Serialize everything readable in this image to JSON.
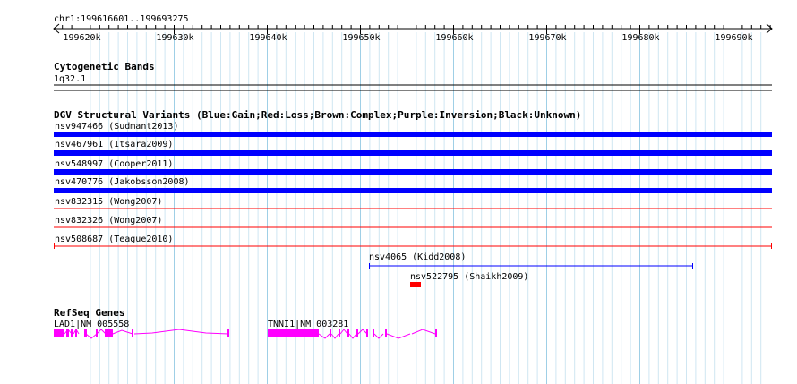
{
  "ruler": {
    "location": "chr1:199616601..199693275",
    "ticks": [
      "199620k",
      "199630k",
      "199640k",
      "199650k",
      "199660k",
      "199670k",
      "199680k",
      "199690k"
    ]
  },
  "cytobands": {
    "title": "Cytogenetic Bands",
    "band": "1q32.1"
  },
  "dgv": {
    "title": "DGV Structural Variants (Blue:Gain;Red:Loss;Brown:Complex;Purple:Inversion;Black:Unknown)",
    "variants": [
      {
        "label": "nsv947466 (Sudmant2013)",
        "type": "gain"
      },
      {
        "label": "nsv467961 (Itsara2009)",
        "type": "gain"
      },
      {
        "label": "nsv548997 (Cooper2011)",
        "type": "gain"
      },
      {
        "label": "nsv470776 (Jakobsson2008)",
        "type": "gain"
      },
      {
        "label": "nsv832315 (Wong2007)",
        "type": "loss"
      },
      {
        "label": "nsv832326 (Wong2007)",
        "type": "loss"
      },
      {
        "label": "nsv508687 (Teague2010)",
        "type": "loss"
      },
      {
        "label": "nsv4065 (Kidd2008)",
        "type": "gain"
      },
      {
        "label": "nsv522795 (Shaikh2009)",
        "type": "loss"
      }
    ],
    "colors": {
      "gain": "#0000ff",
      "loss": "#ff0000"
    }
  },
  "refseq": {
    "title": "RefSeq Genes",
    "genes": [
      {
        "label": "LAD1|NM_005558"
      },
      {
        "label": "TNNI1|NM_003281"
      }
    ],
    "color": "#ff00ff"
  }
}
